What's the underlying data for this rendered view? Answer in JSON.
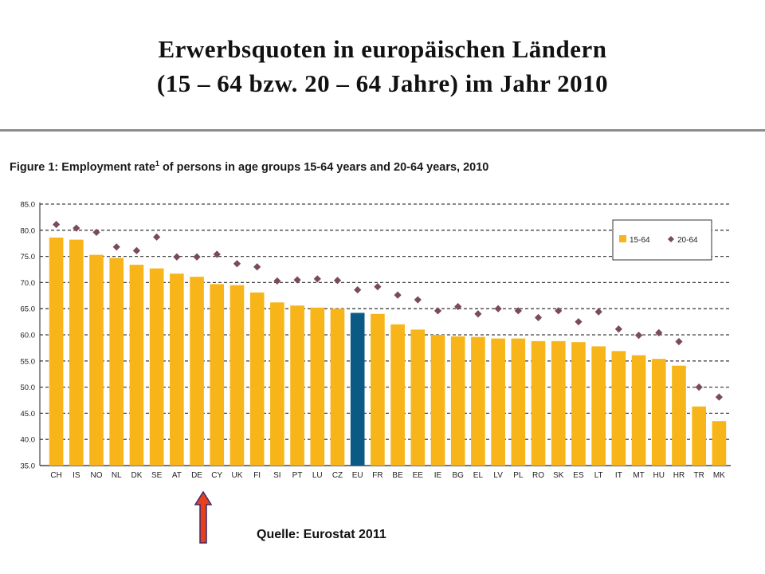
{
  "title": {
    "line1": "Erwerbsquoten in europäischen Ländern",
    "line2": "(15 – 64 bzw. 20 – 64 Jahre) im Jahr 2010"
  },
  "figure": {
    "label": "Figure  1: Employment rate",
    "footnote_mark": "1",
    "rest": " of persons in age groups 15-64 years and 20-64 years, 2010"
  },
  "source": "Quelle: Eurostat 2011",
  "colors": {
    "bar": "#F7B51A",
    "highlight": "#0B5A86",
    "marker": "#7A4A5E",
    "grid": "#444444",
    "arrow_fill": "#E8401C",
    "arrow_stroke": "#3A2A6A"
  },
  "chart_data": {
    "type": "bar",
    "categories": [
      "CH",
      "IS",
      "NO",
      "NL",
      "DK",
      "SE",
      "AT",
      "DE",
      "CY",
      "UK",
      "FI",
      "SI",
      "PT",
      "LU",
      "CZ",
      "EU",
      "FR",
      "BE",
      "EE",
      "IE",
      "BG",
      "EL",
      "LV",
      "PL",
      "RO",
      "SK",
      "ES",
      "LT",
      "IT",
      "MT",
      "HU",
      "HR",
      "TR",
      "MK"
    ],
    "series": [
      {
        "name": "15-64",
        "type": "bar",
        "values": [
          78.6,
          78.2,
          75.3,
          74.7,
          73.4,
          72.7,
          71.7,
          71.1,
          69.7,
          69.5,
          68.1,
          66.2,
          65.6,
          65.2,
          65.0,
          64.2,
          64.0,
          62.0,
          61.0,
          60.0,
          59.7,
          59.6,
          59.3,
          59.3,
          58.8,
          58.8,
          58.6,
          57.8,
          56.9,
          56.1,
          55.4,
          54.1,
          46.3,
          43.5
        ]
      },
      {
        "name": "20-64",
        "type": "marker",
        "values": [
          81.1,
          80.4,
          79.6,
          76.8,
          76.1,
          78.7,
          74.9,
          74.9,
          75.4,
          73.6,
          73.0,
          70.3,
          70.5,
          70.7,
          70.4,
          68.6,
          69.2,
          67.6,
          66.7,
          64.6,
          65.4,
          64.0,
          65.0,
          64.6,
          63.3,
          64.6,
          62.5,
          64.4,
          61.1,
          59.9,
          60.4,
          58.7,
          50.0,
          48.1
        ]
      }
    ],
    "highlight_category": "EU",
    "ylim": [
      35.0,
      85.0
    ],
    "yticks": [
      "35.0",
      "40.0",
      "45.0",
      "50.0",
      "55.0",
      "60.0",
      "65.0",
      "70.0",
      "75.0",
      "80.0",
      "85.0"
    ],
    "legend": {
      "position": "top-right",
      "items": [
        "15-64",
        "20-64"
      ]
    },
    "grid": "dashed horizontal"
  }
}
